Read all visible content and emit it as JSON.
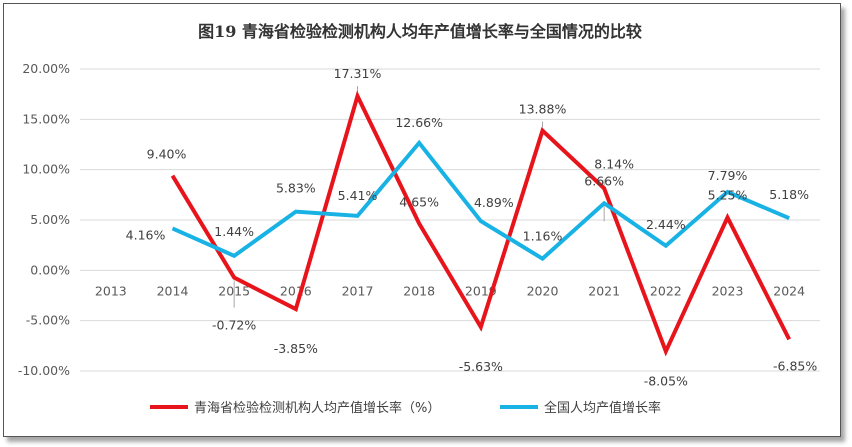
{
  "chart_data": {
    "type": "line",
    "title": "图19  青海省检验检测机构人均年产值增长率与全国情况的比较",
    "categories": [
      "2013",
      "2014",
      "2015",
      "2016",
      "2017",
      "2018",
      "2019",
      "2020",
      "2021",
      "2022",
      "2023",
      "2024"
    ],
    "ylim": [
      -0.1,
      0.2
    ],
    "yticks": [
      "-10.00%",
      "-5.00%",
      "0.00%",
      "5.00%",
      "10.00%",
      "15.00%",
      "20.00%"
    ],
    "ytick_values": [
      -0.1,
      -0.05,
      0.0,
      0.05,
      0.1,
      0.15,
      0.2
    ],
    "grid": true,
    "legend_position": "bottom",
    "series": [
      {
        "name": "青海省检验检测机构人均产值增长率（%）",
        "color": "#e8141b",
        "values": [
          null,
          0.094,
          -0.0072,
          -0.0385,
          0.1731,
          0.0465,
          -0.0563,
          0.1388,
          0.0814,
          -0.0805,
          0.0525,
          -0.0685
        ],
        "labels": [
          "",
          "9.40%",
          "-0.72%",
          "-3.85%",
          "17.31%",
          "4.65%",
          "-5.63%",
          "13.88%",
          "8.14%",
          "-8.05%",
          "5.25%",
          "-6.85%"
        ]
      },
      {
        "name": "全国人均产值增长率",
        "color": "#19b2e4",
        "values": [
          null,
          0.0416,
          0.0144,
          0.0583,
          0.0541,
          0.1266,
          0.0489,
          0.0116,
          0.0666,
          0.0244,
          0.0779,
          0.0518
        ],
        "labels": [
          "",
          "4.16%",
          "1.44%",
          "5.83%",
          "5.41%",
          "12.66%",
          "4.89%",
          "1.16%",
          "6.66%",
          "2.44%",
          "7.79%",
          "5.18%"
        ]
      }
    ]
  }
}
